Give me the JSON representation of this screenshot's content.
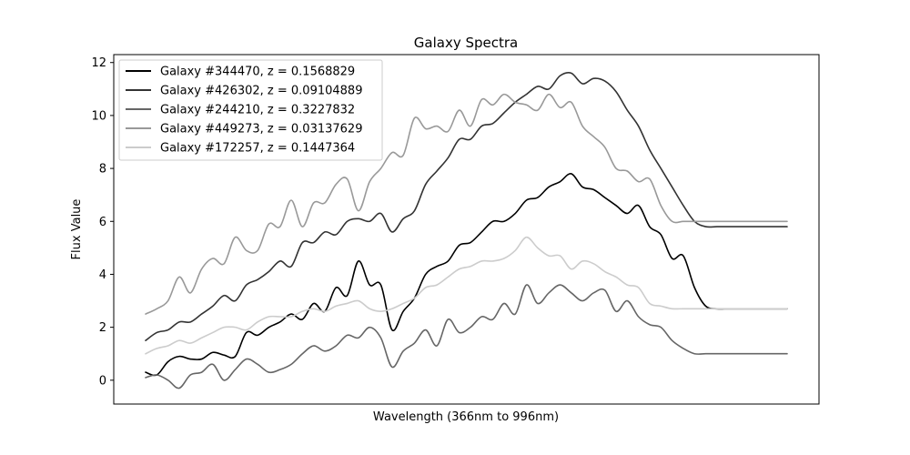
{
  "chart_data": {
    "type": "line",
    "title": "Galaxy Spectra",
    "xlabel": "Wavelength (366nm to 996nm)",
    "ylabel": "Flux Value",
    "xlim": [
      366,
      996
    ],
    "ylim": [
      -0.9,
      12.3
    ],
    "yticks": [
      0,
      2,
      4,
      6,
      8,
      10,
      12
    ],
    "show_xticks": false,
    "grid": false,
    "legend_position": "top-left",
    "x": [
      366,
      377,
      388,
      399,
      410,
      421,
      432,
      443,
      454,
      465,
      476,
      487,
      498,
      509,
      520,
      531,
      542,
      553,
      564,
      575,
      586,
      597,
      608,
      619,
      630,
      641,
      652,
      663,
      674,
      685,
      696,
      707,
      718,
      729,
      740,
      751,
      762,
      773,
      784,
      795,
      806,
      817,
      828,
      839,
      850,
      861,
      872,
      883,
      894,
      905,
      916,
      927,
      938,
      949,
      960,
      971,
      982,
      993,
      996
    ],
    "series": [
      {
        "name": "Galaxy #344470, z = 0.1568829",
        "color": "#000000",
        "values": [
          0.3,
          0.2,
          0.7,
          0.9,
          0.8,
          0.8,
          1.05,
          0.95,
          0.9,
          1.8,
          1.7,
          2.0,
          2.2,
          2.5,
          2.3,
          2.9,
          2.6,
          3.5,
          3.2,
          4.5,
          3.6,
          3.6,
          1.9,
          2.6,
          3.1,
          4.0,
          4.3,
          4.5,
          5.1,
          5.2,
          5.6,
          6.0,
          6.0,
          6.3,
          6.8,
          6.9,
          7.3,
          7.5,
          7.8,
          7.3,
          7.2,
          6.9,
          6.6,
          6.3,
          6.6,
          5.8,
          5.5,
          4.6,
          4.7,
          3.5,
          2.8,
          2.7,
          2.7,
          2.7,
          2.7,
          2.7,
          2.7,
          2.7,
          2.7
        ]
      },
      {
        "name": "Galaxy #426302, z = 0.09104889",
        "color": "#333333",
        "values": [
          1.5,
          1.8,
          1.9,
          2.2,
          2.2,
          2.5,
          2.8,
          3.2,
          3.0,
          3.6,
          3.8,
          4.1,
          4.5,
          4.3,
          5.2,
          5.2,
          5.6,
          5.5,
          6.0,
          6.1,
          6.0,
          6.3,
          5.6,
          6.1,
          6.4,
          7.4,
          7.9,
          8.4,
          9.1,
          9.1,
          9.6,
          9.7,
          10.1,
          10.5,
          10.8,
          11.1,
          11.0,
          11.5,
          11.6,
          11.2,
          11.4,
          11.3,
          10.9,
          10.2,
          9.6,
          8.7,
          8.0,
          7.3,
          6.6,
          6.0,
          5.8,
          5.8,
          5.8,
          5.8,
          5.8,
          5.8,
          5.8,
          5.8,
          5.8
        ]
      },
      {
        "name": "Galaxy #244210, z = 0.3227832",
        "color": "#666666",
        "values": [
          0.1,
          0.2,
          0.0,
          -0.3,
          0.2,
          0.3,
          0.6,
          0.0,
          0.4,
          0.8,
          0.6,
          0.3,
          0.4,
          0.6,
          1.0,
          1.3,
          1.1,
          1.3,
          1.7,
          1.6,
          2.0,
          1.6,
          0.5,
          1.1,
          1.4,
          1.9,
          1.3,
          2.3,
          1.8,
          2.0,
          2.4,
          2.3,
          2.9,
          2.5,
          3.6,
          2.9,
          3.3,
          3.6,
          3.3,
          3.0,
          3.3,
          3.4,
          2.6,
          3.0,
          2.4,
          2.1,
          2.0,
          1.5,
          1.2,
          1.0,
          1.0,
          1.0,
          1.0,
          1.0,
          1.0,
          1.0,
          1.0,
          1.0,
          1.0
        ]
      },
      {
        "name": "Galaxy #449273, z = 0.03137629",
        "color": "#999999",
        "values": [
          2.5,
          2.7,
          3.0,
          3.9,
          3.3,
          4.2,
          4.6,
          4.4,
          5.4,
          4.9,
          4.9,
          5.9,
          5.8,
          6.8,
          5.8,
          6.7,
          6.7,
          7.4,
          7.6,
          6.4,
          7.5,
          8.0,
          8.6,
          8.5,
          9.9,
          9.5,
          9.6,
          9.4,
          10.2,
          9.6,
          10.6,
          10.4,
          10.8,
          10.5,
          10.4,
          10.2,
          10.8,
          10.3,
          10.5,
          9.6,
          9.2,
          8.8,
          8.0,
          7.9,
          7.5,
          7.6,
          6.6,
          6.0,
          6.0,
          6.0,
          6.0,
          6.0,
          6.0,
          6.0,
          6.0,
          6.0,
          6.0,
          6.0,
          6.0
        ]
      },
      {
        "name": "Galaxy #172257, z = 0.1447364",
        "color": "#cccccc",
        "values": [
          1.0,
          1.2,
          1.3,
          1.5,
          1.4,
          1.6,
          1.8,
          2.0,
          2.0,
          1.9,
          2.2,
          2.4,
          2.4,
          2.4,
          2.6,
          2.7,
          2.6,
          2.8,
          2.9,
          3.0,
          2.7,
          2.6,
          2.7,
          2.9,
          3.1,
          3.5,
          3.6,
          3.9,
          4.2,
          4.3,
          4.5,
          4.5,
          4.6,
          4.9,
          5.4,
          5.0,
          4.7,
          4.7,
          4.2,
          4.5,
          4.4,
          4.1,
          3.9,
          3.6,
          3.5,
          2.9,
          2.8,
          2.7,
          2.7,
          2.7,
          2.7,
          2.7,
          2.7,
          2.7,
          2.7,
          2.7,
          2.7,
          2.7,
          2.7
        ]
      }
    ]
  }
}
